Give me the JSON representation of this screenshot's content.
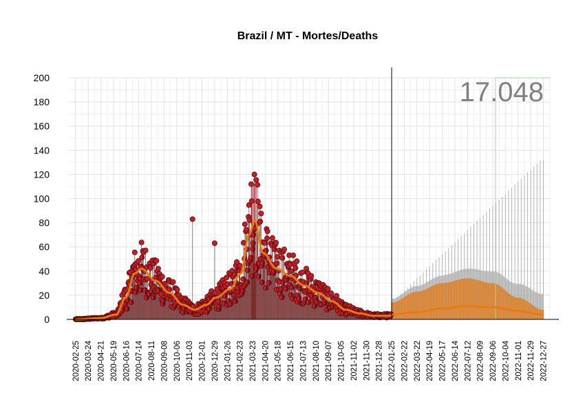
{
  "chart_data": {
    "type": "line",
    "title": "Brazil / MT - Mortes/Deaths",
    "xlabel": "",
    "ylabel": "",
    "ylim": [
      0,
      200
    ],
    "yticks": [
      0,
      20,
      40,
      60,
      80,
      100,
      120,
      140,
      160,
      180,
      200
    ],
    "xlim": [
      "2020-02-10",
      "2023-01-12"
    ],
    "x_tick_labels": [
      "2020-02-25",
      "2020-03-24",
      "2020-04-21",
      "2020-05-19",
      "2020-06-16",
      "2020-07-14",
      "2020-08-11",
      "2020-09-08",
      "2020-10-06",
      "2020-11-03",
      "2020-12-01",
      "2020-12-29",
      "2021-01-26",
      "2021-02-23",
      "2021-03-23",
      "2021-04-20",
      "2021-05-18",
      "2021-06-15",
      "2021-07-13",
      "2021-08-10",
      "2021-09-07",
      "2021-10-05",
      "2021-11-02",
      "2021-11-30",
      "2021-12-28",
      "2022-01-25",
      "2022-02-22",
      "2022-03-22",
      "2022-04-19",
      "2022-05-17",
      "2022-06-14",
      "2022-07-12",
      "2022-08-09",
      "2022-09-06",
      "2022-10-04",
      "2022-11-01",
      "2022-11-29",
      "2022-12-27"
    ],
    "grid": true,
    "forecast_start": "2022-01-25",
    "annotation": "17.048",
    "colors": {
      "observed_points": "#c0202a",
      "observed_outline": "#5a0a0a",
      "smoothed_line": "#e87a10",
      "forecast_band": "#aaaaaa",
      "highlight_bar": "#c8303a",
      "reference_line": "#9fd49f"
    },
    "smoothed_anchors": [
      [
        "2020-02-25",
        0
      ],
      [
        "2020-04-20",
        1
      ],
      [
        "2020-05-25",
        4
      ],
      [
        "2020-06-15",
        18
      ],
      [
        "2020-07-05",
        38
      ],
      [
        "2020-07-20",
        42
      ],
      [
        "2020-08-20",
        32
      ],
      [
        "2020-09-20",
        22
      ],
      [
        "2020-10-20",
        12
      ],
      [
        "2020-11-15",
        8
      ],
      [
        "2020-12-10",
        12
      ],
      [
        "2021-01-01",
        18
      ],
      [
        "2021-02-01",
        25
      ],
      [
        "2021-02-25",
        38
      ],
      [
        "2021-03-15",
        70
      ],
      [
        "2021-03-28",
        82
      ],
      [
        "2021-04-15",
        55
      ],
      [
        "2021-05-15",
        42
      ],
      [
        "2021-06-15",
        36
      ],
      [
        "2021-07-15",
        28
      ],
      [
        "2021-08-15",
        22
      ],
      [
        "2021-09-15",
        15
      ],
      [
        "2021-10-15",
        8
      ],
      [
        "2021-11-15",
        5
      ],
      [
        "2021-12-15",
        3
      ],
      [
        "2022-01-25",
        3
      ]
    ],
    "forecast_anchors": [
      [
        "2022-01-25",
        4
      ],
      [
        "2022-03-22",
        6
      ],
      [
        "2022-05-17",
        9
      ],
      [
        "2022-07-12",
        11
      ],
      [
        "2022-09-06",
        10
      ],
      [
        "2022-11-01",
        7
      ],
      [
        "2022-12-27",
        4
      ]
    ],
    "forecast_upper_anchors": [
      [
        "2022-01-25",
        14
      ],
      [
        "2022-03-22",
        23
      ],
      [
        "2022-05-17",
        30
      ],
      [
        "2022-07-12",
        34
      ],
      [
        "2022-09-06",
        30
      ],
      [
        "2022-11-01",
        18
      ],
      [
        "2022-12-27",
        8
      ]
    ],
    "outliers": [
      [
        "2020-11-10",
        83
      ],
      [
        "2020-12-29",
        63
      ],
      [
        "2021-03-20",
        112
      ],
      [
        "2021-03-27",
        120
      ]
    ],
    "highlight_bar": {
      "from": "2021-03-20",
      "to": "2021-03-31",
      "value": 112
    }
  }
}
